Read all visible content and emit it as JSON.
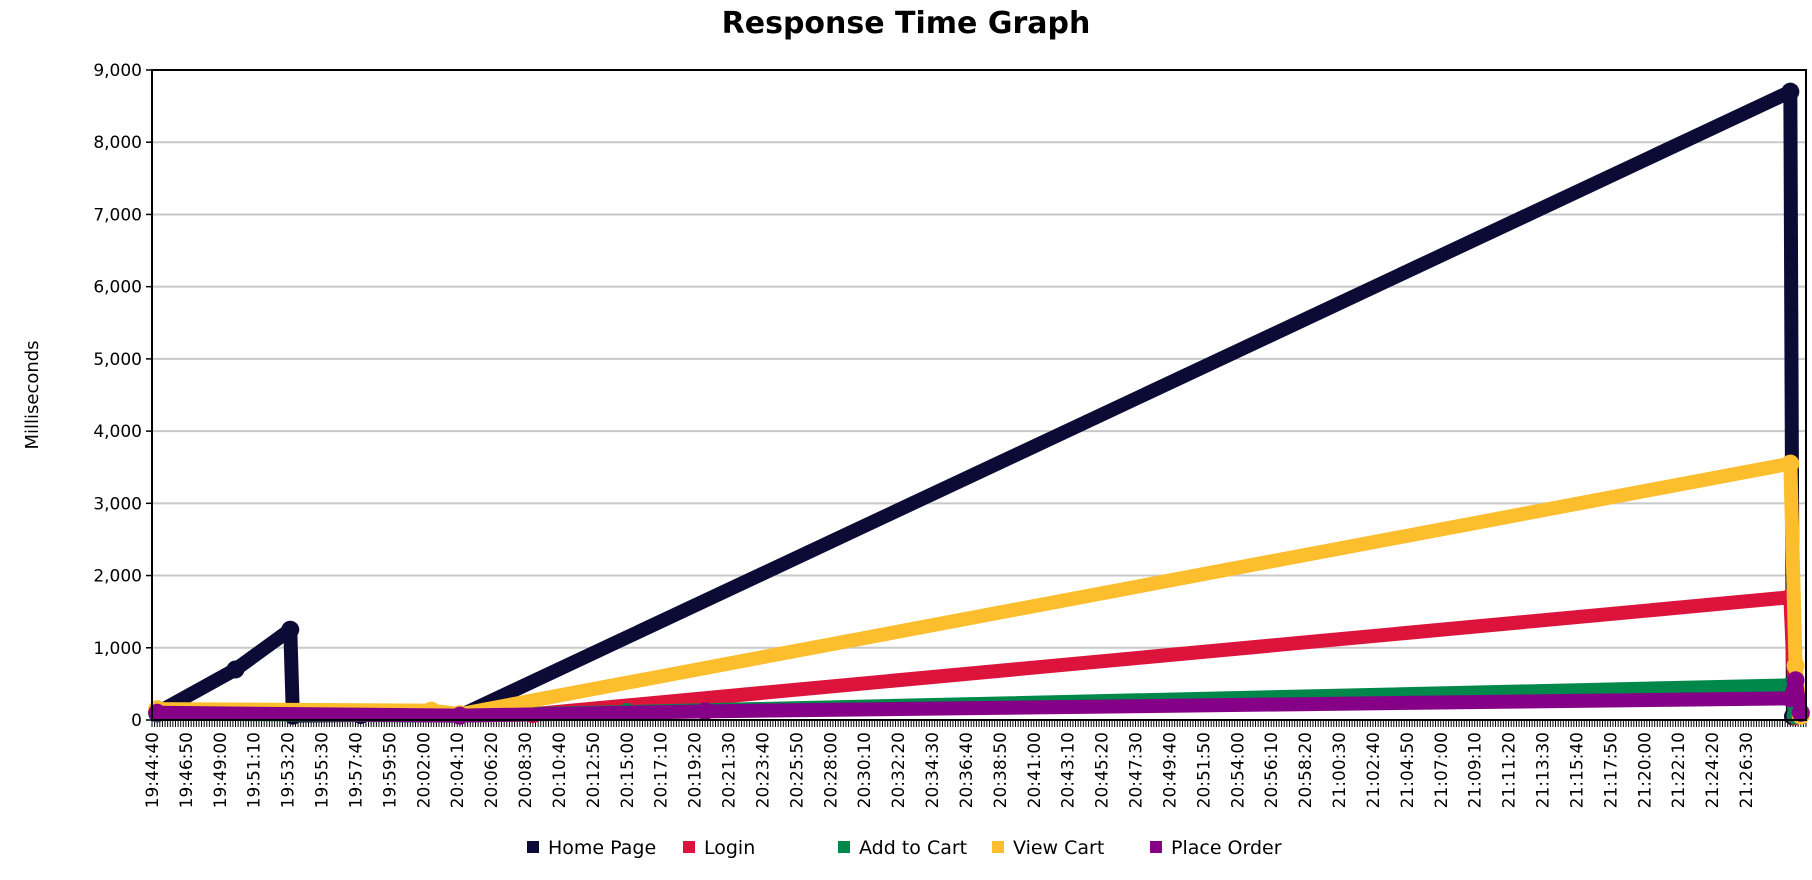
{
  "chart_data": {
    "type": "line",
    "title": "Response Time Graph",
    "ylabel": "Milliseconds",
    "xlabel": "",
    "ylim": [
      0,
      9000
    ],
    "yticks": [
      "0",
      "1,000",
      "2,000",
      "3,000",
      "4,000",
      "5,000",
      "6,000",
      "7,000",
      "8,000",
      "9,000"
    ],
    "yticks_values": [
      0,
      1000,
      2000,
      3000,
      4000,
      5000,
      6000,
      7000,
      8000,
      9000
    ],
    "x_range": [
      "19:44:40",
      "21:30:20"
    ],
    "xtick_labels": [
      "19:44:40",
      "19:46:50",
      "19:49:00",
      "19:51:10",
      "19:53:20",
      "19:55:30",
      "19:57:40",
      "19:59:50",
      "20:02:00",
      "20:04:10",
      "20:06:20",
      "20:08:30",
      "20:10:40",
      "20:12:50",
      "20:15:00",
      "20:17:10",
      "20:19:20",
      "20:21:30",
      "20:23:40",
      "20:25:50",
      "20:28:00",
      "20:30:10",
      "20:32:20",
      "20:34:30",
      "20:36:40",
      "20:38:50",
      "20:41:00",
      "20:43:10",
      "20:45:20",
      "20:47:30",
      "20:49:40",
      "20:51:50",
      "20:54:00",
      "20:56:10",
      "20:58:20",
      "21:00:30",
      "21:02:40",
      "21:04:50",
      "21:07:00",
      "21:09:10",
      "21:11:20",
      "21:13:30",
      "21:15:40",
      "21:17:50",
      "21:20:00",
      "21:22:10",
      "21:24:20",
      "21:26:30"
    ],
    "grid": true,
    "legend_position": "bottom",
    "series": [
      {
        "name": "Home Page",
        "color": "#0b0b35",
        "points": [
          [
            "19:45:00",
            100
          ],
          [
            "19:50:00",
            700
          ],
          [
            "19:53:30",
            1250
          ],
          [
            "19:53:40",
            60
          ],
          [
            "19:58:00",
            70
          ],
          [
            "20:04:20",
            60
          ],
          [
            "21:29:20",
            8700
          ],
          [
            "21:29:30",
            50
          ]
        ]
      },
      {
        "name": "Login",
        "color": "#dc143c",
        "points": [
          [
            "19:45:00",
            120
          ],
          [
            "20:04:20",
            60
          ],
          [
            "20:09:00",
            80
          ],
          [
            "21:29:20",
            1700
          ],
          [
            "21:29:40",
            50
          ]
        ]
      },
      {
        "name": "Add to Cart",
        "color": "#00884a",
        "points": [
          [
            "19:45:00",
            90
          ],
          [
            "20:04:20",
            60
          ],
          [
            "20:15:00",
            110
          ],
          [
            "21:29:20",
            480
          ],
          [
            "21:29:40",
            60
          ]
        ]
      },
      {
        "name": "View Cart",
        "color": "#fcbe2c",
        "points": [
          [
            "19:45:00",
            150
          ],
          [
            "20:02:30",
            130
          ],
          [
            "20:04:20",
            80
          ],
          [
            "21:29:20",
            3550
          ],
          [
            "21:29:40",
            750
          ],
          [
            "21:30:00",
            60
          ]
        ]
      },
      {
        "name": "Place Order",
        "color": "#860087",
        "points": [
          [
            "19:45:00",
            100
          ],
          [
            "20:04:20",
            60
          ],
          [
            "20:20:00",
            120
          ],
          [
            "21:29:20",
            300
          ],
          [
            "21:29:40",
            550
          ],
          [
            "21:30:00",
            100
          ]
        ]
      }
    ]
  }
}
